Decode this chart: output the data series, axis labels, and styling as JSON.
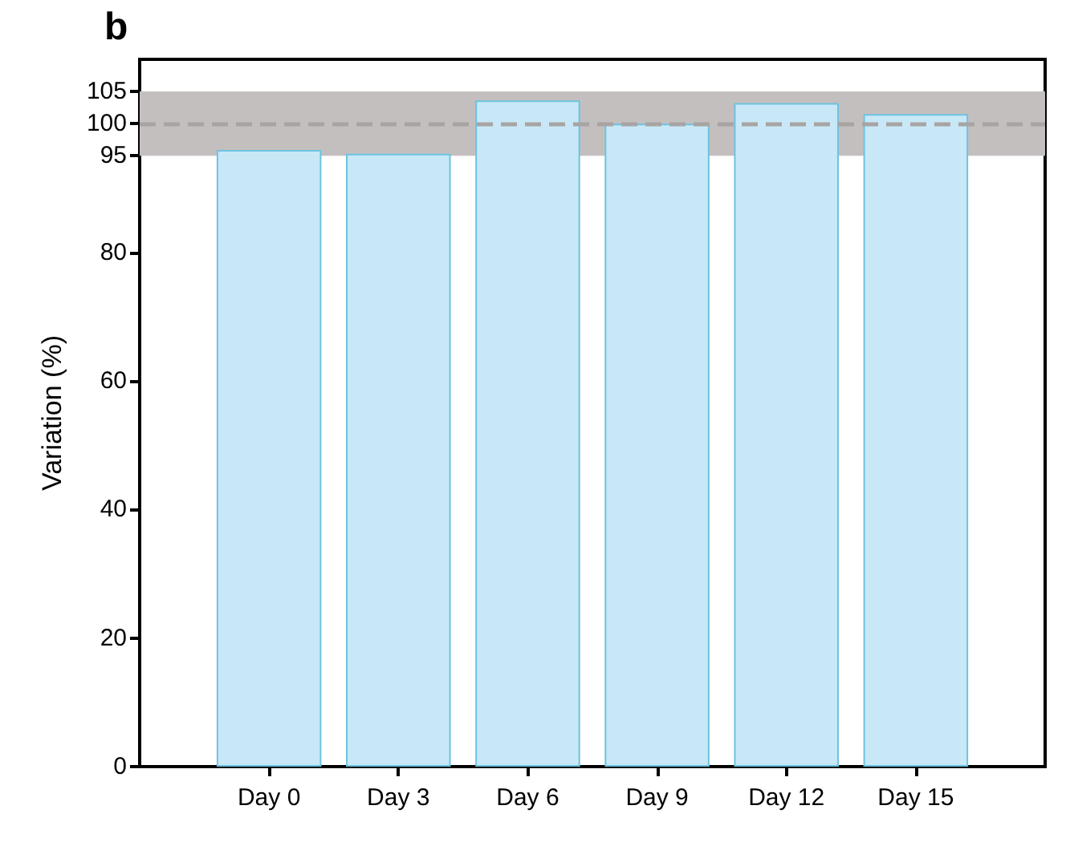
{
  "chart_data": {
    "type": "bar",
    "title": "b",
    "ylabel": "Variation (%)",
    "categories": [
      "Day 0",
      "Day 3",
      "Day 6",
      "Day 9",
      "Day 12",
      "Day 15"
    ],
    "series": [
      {
        "color": "#c8e8f7",
        "values": [
          95.9,
          95.3,
          103.6,
          100,
          103.2,
          101.5
        ]
      }
    ],
    "ylim": [
      0,
      110
    ],
    "yticks": [
      0,
      20,
      40,
      60,
      80,
      95,
      100,
      105
    ],
    "bands": [
      {
        "axis": "y",
        "from": 95,
        "to": 105,
        "color": "#c4bfbf"
      }
    ],
    "ref_lines": [
      {
        "axis": "y",
        "value": 100,
        "color": "#a8a4a4",
        "line_style": "dashed"
      }
    ],
    "grid": false
  }
}
